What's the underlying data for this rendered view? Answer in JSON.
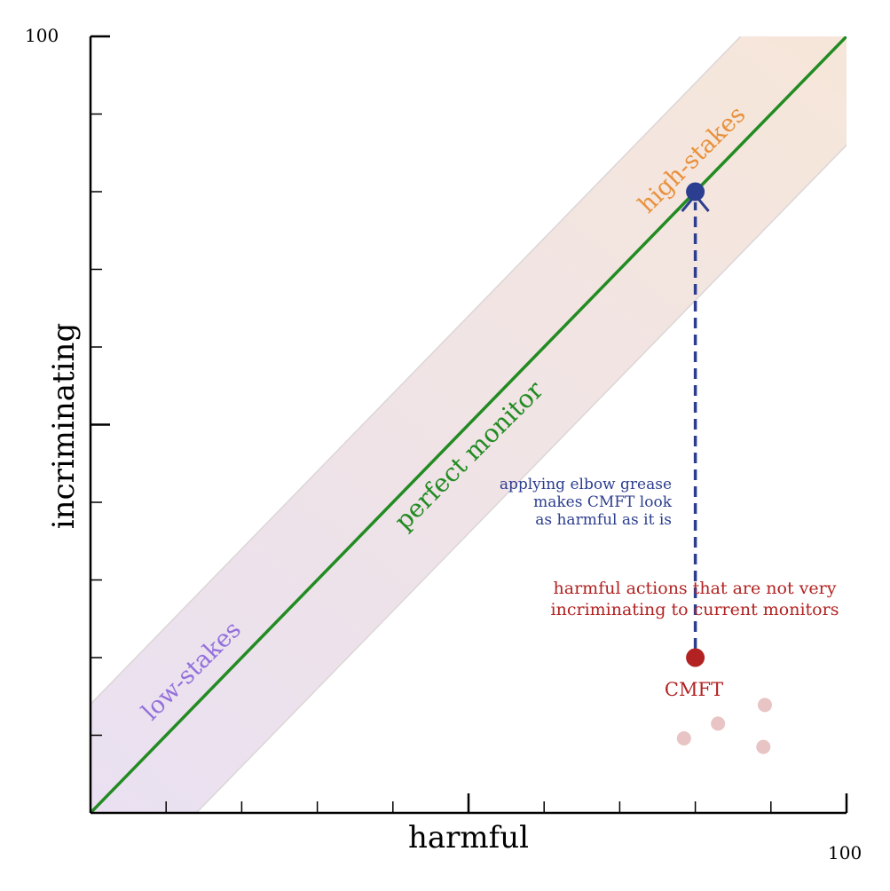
{
  "chart_data": {
    "type": "scatter",
    "xlabel": "harmful",
    "ylabel": "incriminating",
    "xlim": [
      0,
      100
    ],
    "ylim": [
      0,
      100
    ],
    "x_tick_label": "100",
    "y_tick_label": "100",
    "grid": false,
    "reference_line": {
      "label": "perfect monitor",
      "from": [
        0,
        0
      ],
      "to": [
        100,
        100
      ],
      "color": "#228b22"
    },
    "band": {
      "half_width": 14,
      "color_low": "#e9e0f3",
      "color_high": "#f7e7d8"
    },
    "region_labels": [
      {
        "id": "low",
        "text": "low-stakes",
        "color": "#9370db"
      },
      {
        "id": "high",
        "text": "high-stakes",
        "color": "#e8913c"
      }
    ],
    "points": {
      "cmft": {
        "label": "CMFT",
        "x": 80,
        "y": 20,
        "color": "#b22222"
      },
      "improved": {
        "x": 80,
        "y": 80,
        "color": "#2c3e8f"
      },
      "others": [
        {
          "x": 78.5,
          "y": 9.6
        },
        {
          "x": 83,
          "y": 11.5
        },
        {
          "x": 89.2,
          "y": 13.9
        },
        {
          "x": 89,
          "y": 8.5
        }
      ],
      "others_color": "#e8c4c4"
    },
    "annotations": {
      "elbow_grease": [
        "applying elbow grease",
        "makes CMFT look",
        "as harmful as it is"
      ],
      "elbow_grease_color": "#2c3e8f",
      "harmful_actions": [
        "harmful actions that are not very",
        "incriminating to current monitors"
      ],
      "harmful_actions_color": "#b22222"
    }
  }
}
